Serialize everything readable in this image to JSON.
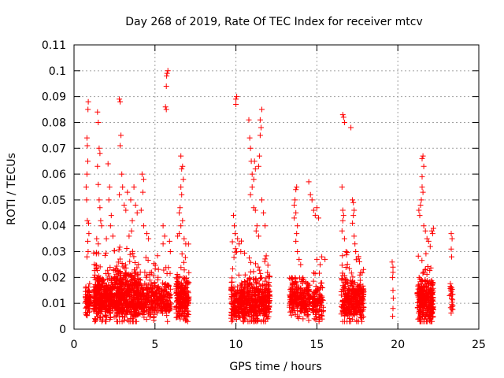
{
  "chart_data": {
    "type": "scatter",
    "title": "Day 268 of 2019, Rate Of TEC Index for receiver mtcv",
    "xlabel": "GPS time / hours",
    "ylabel": "ROTI / TECUs",
    "xlim": [
      0,
      25
    ],
    "ylim": [
      0,
      0.11
    ],
    "xticks": [
      0,
      5,
      10,
      15,
      20,
      25
    ],
    "yticks": [
      0,
      0.01,
      0.02,
      0.03,
      0.04,
      0.05,
      0.06,
      0.07,
      0.08,
      0.09,
      0.1,
      0.11
    ],
    "grid": true,
    "marker": "plus",
    "color": "#ff0000",
    "clusters": [
      {
        "x0": 0.7,
        "x1": 1.05,
        "n": 70,
        "base": 0.0105,
        "spread": 0.004,
        "maxv": 0.02
      },
      {
        "x0": 1.2,
        "x1": 2.4,
        "n": 380,
        "base": 0.012,
        "spread": 0.006,
        "maxv": 0.03
      },
      {
        "x0": 2.4,
        "x1": 4.0,
        "n": 480,
        "base": 0.013,
        "spread": 0.007,
        "maxv": 0.032
      },
      {
        "x0": 4.0,
        "x1": 6.0,
        "n": 360,
        "base": 0.0115,
        "spread": 0.005,
        "maxv": 0.03
      },
      {
        "x0": 6.3,
        "x1": 7.1,
        "n": 230,
        "base": 0.012,
        "spread": 0.006,
        "maxv": 0.035
      },
      {
        "x0": 9.7,
        "x1": 10.5,
        "n": 200,
        "base": 0.01,
        "spread": 0.005,
        "maxv": 0.035
      },
      {
        "x0": 10.5,
        "x1": 12.1,
        "n": 380,
        "base": 0.011,
        "spread": 0.006,
        "maxv": 0.03
      },
      {
        "x0": 13.3,
        "x1": 14.6,
        "n": 260,
        "base": 0.012,
        "spread": 0.005,
        "maxv": 0.02
      },
      {
        "x0": 14.7,
        "x1": 15.4,
        "n": 110,
        "base": 0.01,
        "spread": 0.005,
        "maxv": 0.022
      },
      {
        "x0": 16.5,
        "x1": 17.9,
        "n": 320,
        "base": 0.011,
        "spread": 0.006,
        "maxv": 0.03
      },
      {
        "x0": 21.2,
        "x1": 22.2,
        "n": 300,
        "base": 0.011,
        "spread": 0.006,
        "maxv": 0.03
      },
      {
        "x0": 23.2,
        "x1": 23.4,
        "n": 22,
        "base": 0.012,
        "spread": 0.005,
        "maxv": 0.02
      }
    ],
    "points": [
      [
        0.75,
        0.055
      ],
      [
        0.8,
        0.074
      ],
      [
        0.82,
        0.071
      ],
      [
        0.85,
        0.065
      ],
      [
        0.88,
        0.088
      ],
      [
        0.86,
        0.085
      ],
      [
        0.8,
        0.06
      ],
      [
        0.78,
        0.05
      ],
      [
        0.82,
        0.042
      ],
      [
        0.9,
        0.041
      ],
      [
        0.92,
        0.037
      ],
      [
        0.85,
        0.034
      ],
      [
        0.8,
        0.028
      ],
      [
        0.87,
        0.03
      ],
      [
        1.45,
        0.084
      ],
      [
        1.5,
        0.08
      ],
      [
        1.55,
        0.07
      ],
      [
        1.6,
        0.068
      ],
      [
        1.45,
        0.063
      ],
      [
        1.5,
        0.056
      ],
      [
        1.55,
        0.05
      ],
      [
        1.6,
        0.047
      ],
      [
        1.65,
        0.042
      ],
      [
        1.7,
        0.04
      ],
      [
        1.4,
        0.035
      ],
      [
        1.5,
        0.033
      ],
      [
        2.1,
        0.064
      ],
      [
        2.2,
        0.055
      ],
      [
        2.15,
        0.05
      ],
      [
        2.3,
        0.044
      ],
      [
        2.25,
        0.04
      ],
      [
        2.4,
        0.036
      ],
      [
        2.0,
        0.035
      ],
      [
        2.8,
        0.089
      ],
      [
        2.85,
        0.088
      ],
      [
        2.9,
        0.075
      ],
      [
        2.85,
        0.071
      ],
      [
        2.95,
        0.06
      ],
      [
        3.0,
        0.055
      ],
      [
        2.8,
        0.052
      ],
      [
        3.1,
        0.048
      ],
      [
        3.3,
        0.053
      ],
      [
        3.2,
        0.046
      ],
      [
        3.5,
        0.05
      ],
      [
        3.6,
        0.042
      ],
      [
        3.7,
        0.055
      ],
      [
        3.8,
        0.048
      ],
      [
        3.9,
        0.045
      ],
      [
        3.55,
        0.038
      ],
      [
        3.4,
        0.036
      ],
      [
        4.2,
        0.06
      ],
      [
        4.3,
        0.058
      ],
      [
        4.25,
        0.053
      ],
      [
        4.15,
        0.046
      ],
      [
        4.3,
        0.04
      ],
      [
        4.5,
        0.037
      ],
      [
        4.6,
        0.035
      ],
      [
        5.5,
        0.04
      ],
      [
        5.6,
        0.036
      ],
      [
        5.65,
        0.086
      ],
      [
        5.7,
        0.085
      ],
      [
        5.7,
        0.094
      ],
      [
        5.75,
        0.099
      ],
      [
        5.8,
        0.1
      ],
      [
        5.72,
        0.098
      ],
      [
        5.5,
        0.033
      ],
      [
        5.9,
        0.034
      ],
      [
        5.95,
        0.03
      ],
      [
        6.6,
        0.067
      ],
      [
        6.7,
        0.063
      ],
      [
        6.65,
        0.062
      ],
      [
        6.75,
        0.058
      ],
      [
        6.6,
        0.055
      ],
      [
        6.65,
        0.052
      ],
      [
        6.55,
        0.047
      ],
      [
        6.5,
        0.045
      ],
      [
        6.7,
        0.042
      ],
      [
        6.6,
        0.04
      ],
      [
        6.5,
        0.037
      ],
      [
        6.4,
        0.036
      ],
      [
        6.8,
        0.035
      ],
      [
        6.9,
        0.033
      ],
      [
        9.85,
        0.044
      ],
      [
        9.9,
        0.04
      ],
      [
        9.95,
        0.037
      ],
      [
        10.0,
        0.089
      ],
      [
        10.05,
        0.09
      ],
      [
        10.0,
        0.087
      ],
      [
        10.1,
        0.035
      ],
      [
        10.2,
        0.033
      ],
      [
        10.3,
        0.03
      ],
      [
        10.8,
        0.081
      ],
      [
        10.85,
        0.074
      ],
      [
        10.9,
        0.07
      ],
      [
        10.95,
        0.065
      ],
      [
        11.0,
        0.06
      ],
      [
        11.1,
        0.058
      ],
      [
        11.15,
        0.065
      ],
      [
        11.2,
        0.062
      ],
      [
        11.0,
        0.055
      ],
      [
        10.9,
        0.052
      ],
      [
        11.1,
        0.047
      ],
      [
        11.2,
        0.046
      ],
      [
        11.3,
        0.04
      ],
      [
        11.25,
        0.038
      ],
      [
        11.4,
        0.036
      ],
      [
        11.5,
        0.081
      ],
      [
        11.6,
        0.085
      ],
      [
        11.55,
        0.078
      ],
      [
        11.5,
        0.075
      ],
      [
        11.45,
        0.067
      ],
      [
        11.4,
        0.063
      ],
      [
        11.6,
        0.05
      ],
      [
        11.7,
        0.045
      ],
      [
        11.8,
        0.04
      ],
      [
        13.6,
        0.048
      ],
      [
        13.65,
        0.05
      ],
      [
        13.7,
        0.054
      ],
      [
        13.75,
        0.055
      ],
      [
        13.7,
        0.045
      ],
      [
        13.6,
        0.043
      ],
      [
        13.8,
        0.04
      ],
      [
        13.75,
        0.037
      ],
      [
        13.7,
        0.034
      ],
      [
        13.8,
        0.03
      ],
      [
        13.9,
        0.027
      ],
      [
        14.0,
        0.025
      ],
      [
        14.5,
        0.057
      ],
      [
        14.6,
        0.052
      ],
      [
        14.7,
        0.05
      ],
      [
        14.8,
        0.046
      ],
      [
        14.9,
        0.044
      ],
      [
        15.0,
        0.047
      ],
      [
        15.1,
        0.043
      ],
      [
        15.0,
        0.027
      ],
      [
        15.2,
        0.025
      ],
      [
        15.3,
        0.028
      ],
      [
        15.5,
        0.027
      ],
      [
        16.6,
        0.083
      ],
      [
        16.65,
        0.082
      ],
      [
        16.7,
        0.08
      ],
      [
        16.55,
        0.055
      ],
      [
        16.6,
        0.046
      ],
      [
        16.65,
        0.044
      ],
      [
        16.6,
        0.042
      ],
      [
        16.55,
        0.038
      ],
      [
        16.7,
        0.035
      ],
      [
        16.8,
        0.03
      ],
      [
        17.1,
        0.078
      ],
      [
        17.2,
        0.05
      ],
      [
        17.25,
        0.049
      ],
      [
        17.3,
        0.046
      ],
      [
        17.25,
        0.044
      ],
      [
        17.2,
        0.041
      ],
      [
        17.3,
        0.036
      ],
      [
        17.35,
        0.033
      ],
      [
        17.4,
        0.03
      ],
      [
        19.65,
        0.026
      ],
      [
        19.7,
        0.024
      ],
      [
        19.7,
        0.022
      ],
      [
        19.68,
        0.02
      ],
      [
        19.7,
        0.015
      ],
      [
        19.72,
        0.012
      ],
      [
        19.7,
        0.008
      ],
      [
        19.68,
        0.005
      ],
      [
        21.3,
        0.046
      ],
      [
        21.35,
        0.044
      ],
      [
        21.4,
        0.048
      ],
      [
        21.5,
        0.055
      ],
      [
        21.55,
        0.053
      ],
      [
        21.45,
        0.05
      ],
      [
        21.5,
        0.066
      ],
      [
        21.55,
        0.067
      ],
      [
        21.6,
        0.063
      ],
      [
        21.5,
        0.059
      ],
      [
        21.6,
        0.04
      ],
      [
        21.7,
        0.038
      ],
      [
        21.8,
        0.035
      ],
      [
        21.9,
        0.034
      ],
      [
        22.0,
        0.032
      ],
      [
        22.1,
        0.038
      ],
      [
        22.15,
        0.037
      ],
      [
        22.2,
        0.039
      ],
      [
        23.3,
        0.037
      ],
      [
        23.35,
        0.035
      ],
      [
        23.3,
        0.031
      ],
      [
        23.32,
        0.028
      ]
    ]
  }
}
